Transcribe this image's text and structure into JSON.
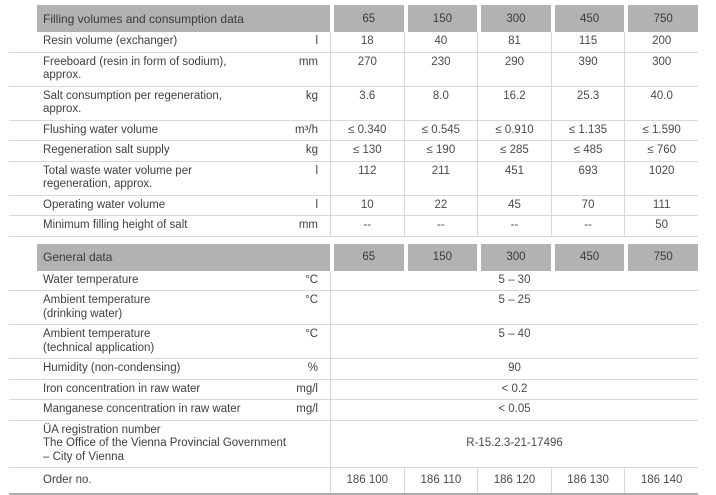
{
  "colors": {
    "header_bg": "#b2b2b2",
    "header_text": "#3a3a3a",
    "label_text": "#404040",
    "value_text": "#4a4a4a",
    "row_border": "#d8d8d8",
    "bottom_border": "#adadad"
  },
  "columns": [
    "65",
    "150",
    "300",
    "450",
    "750"
  ],
  "sections": [
    {
      "title": "Filling volumes and consumption data",
      "rows": [
        {
          "label": "Resin volume (exchanger)",
          "unit": "l",
          "values": [
            "18",
            "40",
            "81",
            "115",
            "200"
          ]
        },
        {
          "label": "Freeboard (resin in form of sodium),\napprox.",
          "unit": "mm",
          "values": [
            "270",
            "230",
            "290",
            "390",
            "300"
          ]
        },
        {
          "label": "Salt consumption per regeneration,\napprox.",
          "unit": "kg",
          "values": [
            "3.6",
            "8.0",
            "16.2",
            "25.3",
            "40.0"
          ]
        },
        {
          "label": "Flushing water volume",
          "unit": "m³/h",
          "values": [
            "≤ 0.340",
            "≤ 0.545",
            "≤ 0.910",
            "≤ 1.135",
            "≤ 1.590"
          ]
        },
        {
          "label": "Regeneration salt supply",
          "unit": "kg",
          "values": [
            "≤ 130",
            "≤ 190",
            "≤ 285",
            "≤ 485",
            "≤ 760"
          ]
        },
        {
          "label": "Total waste water volume per\nregeneration, approx.",
          "unit": "l",
          "values": [
            "112",
            "211",
            "451",
            "693",
            "1020"
          ]
        },
        {
          "label": "Operating water volume",
          "unit": "l",
          "values": [
            "10",
            "22",
            "45",
            "70",
            "111"
          ]
        },
        {
          "label": "Minimum filling height of salt",
          "unit": "mm",
          "values": [
            "--",
            "--",
            "--",
            "--",
            "50"
          ]
        }
      ]
    },
    {
      "title": "General data",
      "rows": [
        {
          "label": "Water temperature",
          "unit": "°C",
          "merged": "5 – 30"
        },
        {
          "label": "Ambient temperature\n(drinking water)",
          "unit": "°C",
          "merged": "5 – 25"
        },
        {
          "label": "Ambient temperature\n(technical application)",
          "unit": "°C",
          "merged": "5 – 40"
        },
        {
          "label": "Humidity (non-condensing)",
          "unit": "%",
          "merged": "90"
        },
        {
          "label": "Iron concentration in raw water",
          "unit": "mg/l",
          "merged": "< 0.2"
        },
        {
          "label": "Manganese concentration in raw water",
          "unit": "mg/l",
          "merged": "< 0.05"
        },
        {
          "label": "ÜA registration number\nThe Office of the Vienna Provincial Government\n– City of Vienna",
          "unit": "",
          "merged": "R-15.2.3-21-17496",
          "tall": true
        },
        {
          "label": "Order no.",
          "unit": "",
          "values": [
            "186 100",
            "186 110",
            "186 120",
            "186 130",
            "186 140"
          ],
          "last": true,
          "padded": true
        }
      ]
    }
  ]
}
